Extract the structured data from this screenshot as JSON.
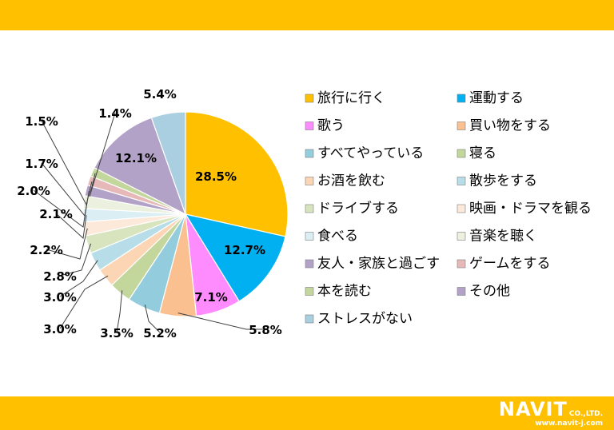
{
  "theme": {
    "bar_color": "#ffc000"
  },
  "logo": {
    "main": "NAVIT",
    "co": "CO.,LTD.",
    "url": "www.navit-j.com"
  },
  "chart_data": {
    "type": "pie",
    "title": "",
    "start_angle_deg": 0,
    "direction": "clockwise",
    "legend": "right",
    "slices": [
      {
        "label": "旅行に行く",
        "value": 28.5,
        "display": "28.5%",
        "color": "#ffc000"
      },
      {
        "label": "運動する",
        "value": 12.7,
        "display": "12.7%",
        "color": "#00b0f0"
      },
      {
        "label": "歌う",
        "value": 7.1,
        "display": "7.1%",
        "color": "#ff8cff"
      },
      {
        "label": "買い物をする",
        "value": 5.8,
        "display": "5.8%",
        "color": "#fac090"
      },
      {
        "label": "すべてやっている",
        "value": 5.2,
        "display": "5.2%",
        "color": "#93cddd"
      },
      {
        "label": "寝る",
        "value": 3.5,
        "display": "3.5%",
        "color": "#c3d69b"
      },
      {
        "label": "お酒を飲む",
        "value": 3.0,
        "display": "3.0%",
        "color": "#fcd5b5"
      },
      {
        "label": "散歩をする",
        "value": 3.0,
        "display": "3.0%",
        "color": "#b7dee8"
      },
      {
        "label": "ドライブする",
        "value": 2.8,
        "display": "2.8%",
        "color": "#d7e4bd"
      },
      {
        "label": "映画・ドラマを観る",
        "value": 2.2,
        "display": "2.2%",
        "color": "#fde9d9"
      },
      {
        "label": "食べる",
        "value": 2.1,
        "display": "2.1%",
        "color": "#dbeef4"
      },
      {
        "label": "音楽を聴く",
        "value": 2.0,
        "display": "2.0%",
        "color": "#ebf1de"
      },
      {
        "label": "友人・家族と過ごす",
        "value": 1.7,
        "display": "1.7%",
        "color": "#b3a2c7"
      },
      {
        "label": "ゲームをする",
        "value": 1.5,
        "display": "1.5%",
        "color": "#e6b9b8"
      },
      {
        "label": "本を読む",
        "value": 1.4,
        "display": "1.4%",
        "color": "#c3d69b"
      },
      {
        "label": "その他",
        "value": 12.1,
        "display": "12.1%",
        "color": "#b3a2c7"
      },
      {
        "label": "ストレスがない",
        "value": 5.4,
        "display": "5.4%",
        "color": "#a9cfe0"
      }
    ]
  }
}
